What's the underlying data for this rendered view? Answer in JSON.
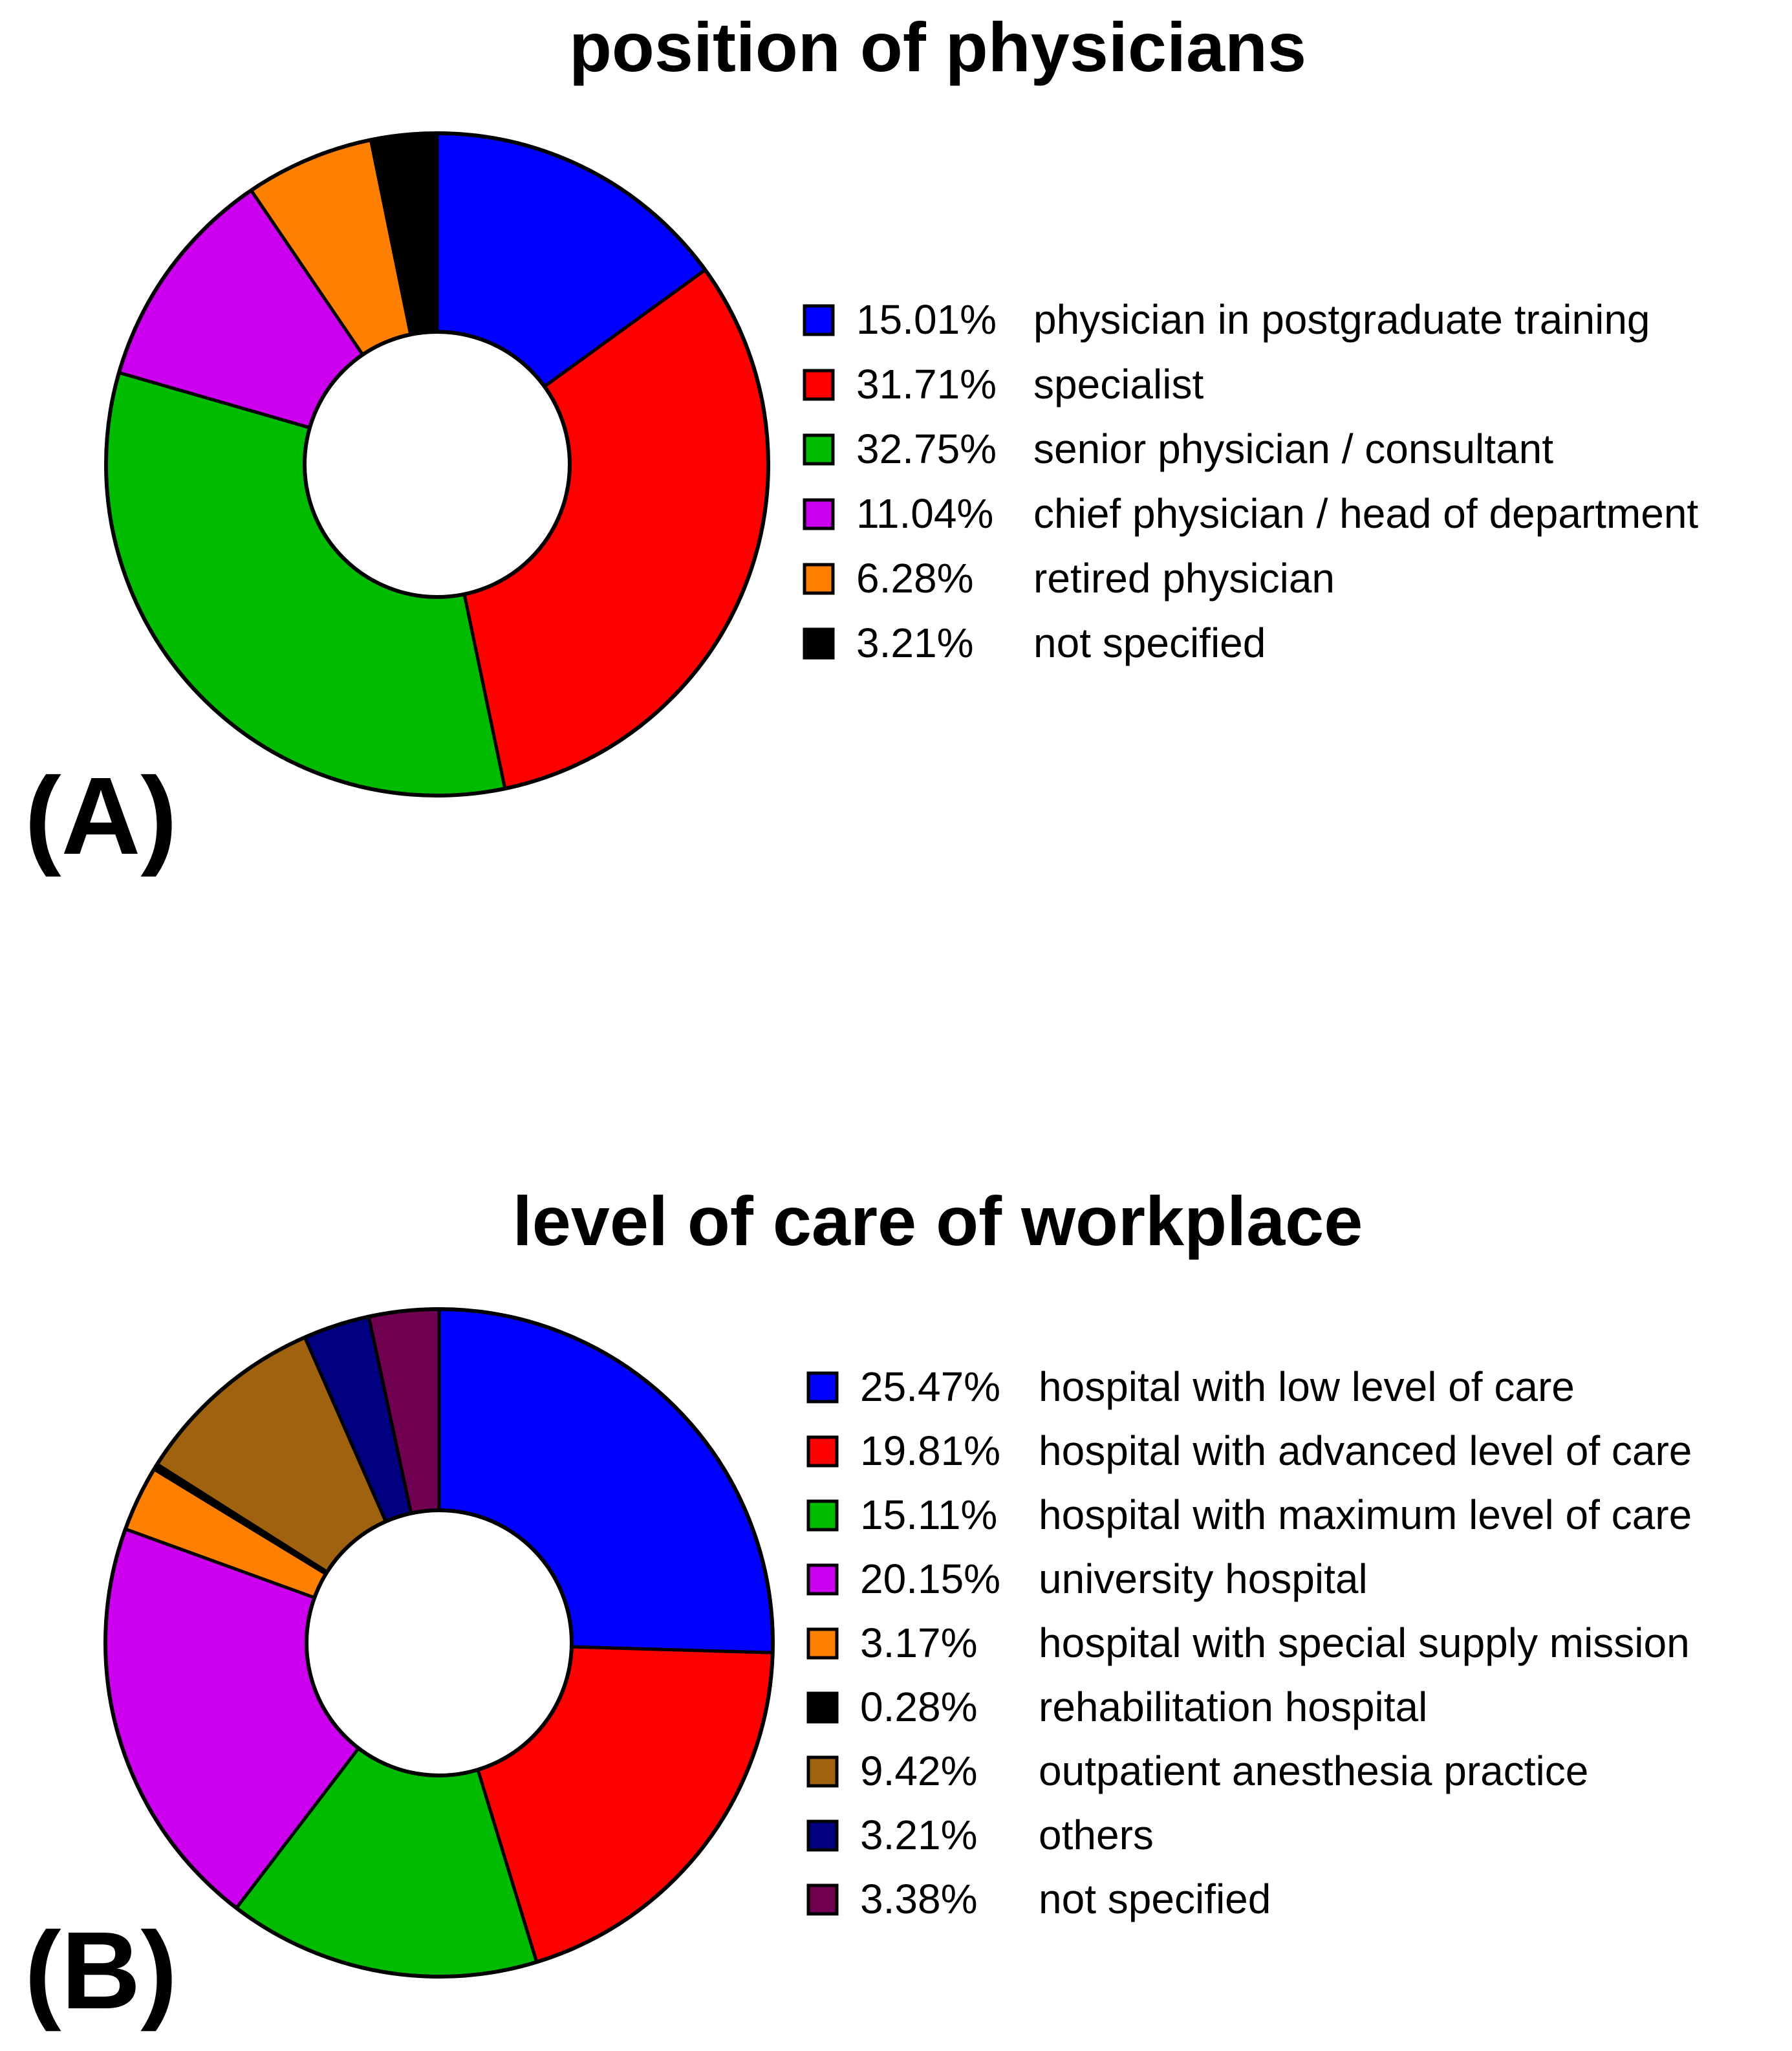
{
  "chart_data": [
    {
      "type": "pie",
      "donut": true,
      "panel_label": "(A)",
      "title": "position of physicians",
      "categories": [
        "physician in postgraduate training",
        "specialist",
        "senior physician / consultant",
        "chief physician / head of department",
        "retired physician",
        "not specified"
      ],
      "values": [
        15.01,
        31.71,
        32.75,
        11.04,
        6.28,
        3.21
      ],
      "value_labels": [
        "15.01%",
        "31.71%",
        "32.75%",
        "11.04%",
        "6.28%",
        "3.21%"
      ],
      "colors": [
        "#0000ff",
        "#ff0000",
        "#00bb00",
        "#cc00ee",
        "#ff8000",
        "#000000"
      ],
      "legend_position": "right"
    },
    {
      "type": "pie",
      "donut": true,
      "panel_label": "(B)",
      "title": "level of care of workplace",
      "categories": [
        "hospital with low level of care",
        "hospital with advanced level of care",
        "hospital with maximum level of care",
        "university hospital",
        "hospital with special supply mission",
        "rehabilitation hospital",
        "outpatient anesthesia practice",
        "others",
        "not specified"
      ],
      "values": [
        25.47,
        19.81,
        15.11,
        20.15,
        3.17,
        0.28,
        9.42,
        3.21,
        3.38
      ],
      "value_labels": [
        "25.47%",
        "19.81%",
        "15.11%",
        "20.15%",
        "3.17%",
        "0.28%",
        "9.42%",
        "3.21%",
        "3.38%"
      ],
      "colors": [
        "#0000ff",
        "#ff0000",
        "#00bb00",
        "#cc00ee",
        "#ff8000",
        "#000000",
        "#a0620f",
        "#000080",
        "#700050"
      ],
      "legend_position": "right"
    }
  ]
}
